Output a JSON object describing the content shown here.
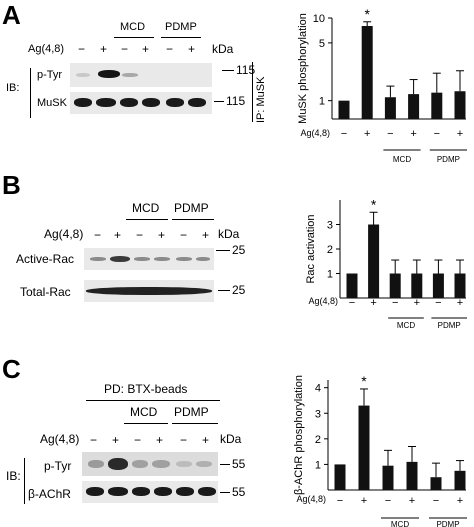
{
  "panels": {
    "A": {
      "label": "A",
      "blot": {
        "groups": [
          "MCD",
          "PDMP"
        ],
        "ag_label": "Ag(4,8)",
        "lanes": [
          "−",
          "+",
          "−",
          "+",
          "−",
          "+"
        ],
        "kda": "kDa",
        "ib": "IB:",
        "rows": [
          "p-Tyr",
          "MuSK"
        ],
        "markers": [
          "115",
          "115"
        ],
        "ip": "IP: MuSK"
      }
    },
    "B": {
      "label": "B",
      "blot": {
        "groups": [
          "MCD",
          "PDMP"
        ],
        "ag_label": "Ag(4,8)",
        "lanes": [
          "−",
          "+",
          "−",
          "+",
          "−",
          "+"
        ],
        "kda": "kDa",
        "rows": [
          "Active-Rac",
          "Total-Rac"
        ],
        "markers": [
          "25",
          "25"
        ]
      }
    },
    "C": {
      "label": "C",
      "blot": {
        "pd": "PD: BTX-beads",
        "groups": [
          "MCD",
          "PDMP"
        ],
        "ag_label": "Ag(4,8)",
        "lanes": [
          "−",
          "+",
          "−",
          "+",
          "−",
          "+"
        ],
        "kda": "kDa",
        "ib": "IB:",
        "rows": [
          "p-Tyr",
          "β-AChR"
        ],
        "markers": [
          "55",
          "55"
        ]
      }
    }
  },
  "chart_data": [
    {
      "type": "bar",
      "ylabel": "MuSK phosphorylation",
      "y_scale": "log",
      "ylim": [
        0.6,
        10
      ],
      "yticks": [
        "10",
        "5",
        "1"
      ],
      "yticks_values": [
        10,
        5,
        1
      ],
      "xlabel": "Ag(4,8)",
      "categories": [
        "−",
        "+",
        "−",
        "+",
        "−",
        "+"
      ],
      "groups": [
        "MCD",
        "PDMP"
      ],
      "values": [
        1.0,
        8.0,
        1.1,
        1.2,
        1.25,
        1.3
      ],
      "errors": [
        0,
        1.0,
        0.4,
        0.6,
        0.9,
        1.0
      ],
      "annotation": "*",
      "color": "#111111"
    },
    {
      "type": "bar",
      "ylabel": "Rac activation",
      "ylim": [
        0,
        4
      ],
      "yticks": [
        "3",
        "2",
        "1"
      ],
      "yticks_values": [
        3,
        2,
        1
      ],
      "xlabel": "Ag(4,8)",
      "categories": [
        "−",
        "+",
        "−",
        "+",
        "−",
        "+"
      ],
      "groups": [
        "MCD",
        "PDMP"
      ],
      "values": [
        1.0,
        3.0,
        1.0,
        1.0,
        1.0,
        1.0
      ],
      "errors": [
        0,
        0.5,
        0.55,
        0.55,
        0.55,
        0.55
      ],
      "annotation": "*",
      "color": "#111111"
    },
    {
      "type": "bar",
      "ylabel": "β-AChR phosphorylation",
      "ylim": [
        0,
        4.3
      ],
      "yticks": [
        "4",
        "3",
        "2",
        "1"
      ],
      "yticks_values": [
        4,
        3,
        2,
        1
      ],
      "xlabel": "Ag(4,8)",
      "categories": [
        "−",
        "+",
        "−",
        "+",
        "−",
        "+"
      ],
      "groups": [
        "MCD",
        "PDMP"
      ],
      "values": [
        1.0,
        3.3,
        0.95,
        1.1,
        0.5,
        0.75
      ],
      "errors": [
        0,
        0.65,
        0.6,
        0.6,
        0.55,
        0.4
      ],
      "annotation": "*",
      "color": "#111111"
    }
  ]
}
